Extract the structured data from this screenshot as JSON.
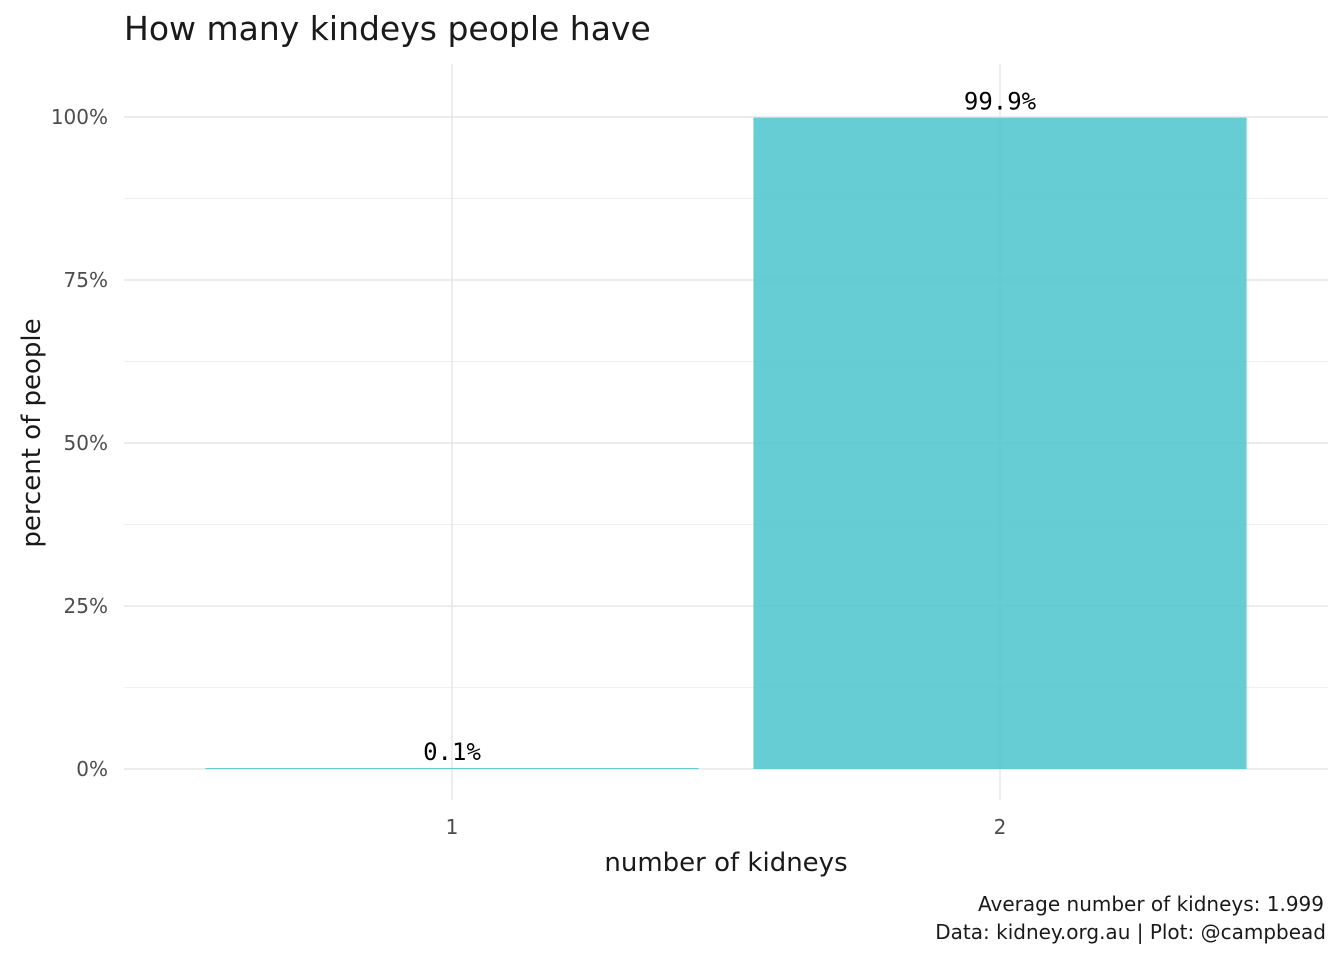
{
  "chart_data": {
    "type": "bar",
    "title": "How many kindeys people have",
    "xlabel": "number of kidneys",
    "ylabel": "percent of people",
    "categories": [
      "1",
      "2"
    ],
    "values": [
      0.1,
      99.9
    ],
    "data_labels": [
      "0.1%",
      "99.9%"
    ],
    "ylim": [
      0,
      100
    ],
    "yticks": [
      0,
      25,
      50,
      75,
      100
    ],
    "ytick_labels": [
      "0%",
      "25%",
      "50%",
      "75%",
      "100%"
    ],
    "grid": true,
    "legend": "none",
    "bar_color": "#4fc6cf",
    "caption": [
      "Average number of kidneys: 1.999",
      "Data: kidney.org.au | Plot: @campbead"
    ]
  }
}
